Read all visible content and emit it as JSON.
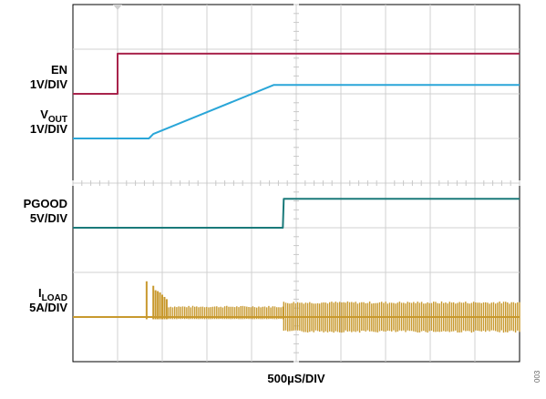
{
  "chart_data": {
    "type": "line",
    "xlabel": "500µS/DIV",
    "figure_number": "003",
    "grid": true,
    "divisions": {
      "x": 10,
      "y": 8
    },
    "x_unit": "div",
    "xlim": [
      0,
      10
    ],
    "ylim": [
      0,
      8
    ],
    "trigger_marker": {
      "x": 1.0
    },
    "channels": [
      {
        "id": "en",
        "label_main": "EN",
        "label_sub": "",
        "scale": "1V/DIV",
        "color": "#A8234B",
        "baseline_div": 6.0,
        "x": [
          0,
          1.0,
          1.0,
          10
        ],
        "y": [
          0,
          0,
          0.9,
          0.9
        ],
        "noise": false
      },
      {
        "id": "vout",
        "label_main": "V",
        "label_sub": "OUT",
        "scale": "1V/DIV",
        "color": "#2AA6D8",
        "baseline_div": 5.0,
        "x": [
          0,
          1.7,
          1.8,
          4.5,
          10
        ],
        "y": [
          0,
          0,
          0.1,
          1.2,
          1.2
        ],
        "noise": false
      },
      {
        "id": "pgood",
        "label_main": "PGOOD",
        "label_sub": "",
        "scale": "5V/DIV",
        "color": "#1A7A7A",
        "baseline_div": 3.0,
        "x": [
          0,
          4.7,
          4.72,
          10
        ],
        "y": [
          0,
          0,
          0.65,
          0.65
        ],
        "noise": false
      },
      {
        "id": "iload",
        "label_main": "I",
        "label_sub": "LOAD",
        "scale": "5A/DIV",
        "color": "#C8992E",
        "baseline_div": 1.0,
        "x": [
          0,
          1.65,
          4.7,
          10
        ],
        "y": [
          0,
          0,
          0,
          0
        ],
        "noise": true,
        "spike_x": [
          1.65,
          1.8,
          1.85,
          1.9,
          1.95,
          2.0,
          2.05,
          2.1
        ],
        "spike_h": [
          0.8,
          0.7,
          0.6,
          0.58,
          0.55,
          0.5,
          0.45,
          0.4
        ],
        "band_pre": {
          "x0": 2.1,
          "x1": 4.7,
          "hi": 0.25,
          "lo": -0.05
        },
        "band_post": {
          "x0": 4.72,
          "x1": 10,
          "hi": 0.35,
          "lo": -0.35
        }
      }
    ]
  }
}
